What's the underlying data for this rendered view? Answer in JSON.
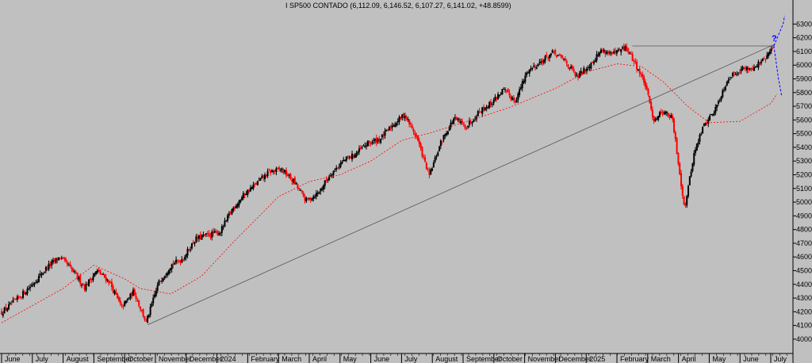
{
  "chart_data": {
    "type": "candlestick",
    "title": "I SP500 CONTADO (6,112.09, 6,146.52, 6,107.27, 6,141.02, +48.8599)",
    "ylim": [
      3930,
      6360
    ],
    "y_ticks": [
      4000,
      4100,
      4200,
      4300,
      4400,
      4500,
      4600,
      4700,
      4800,
      4900,
      5000,
      5100,
      5200,
      5300,
      5400,
      5500,
      5600,
      5700,
      5800,
      5900,
      6000,
      6100,
      6200,
      6300
    ],
    "x_labels": [
      "June",
      "July",
      "August",
      "September",
      "October",
      "November",
      "December",
      "2024",
      "February",
      "March",
      "April",
      "May",
      "June",
      "July",
      "August",
      "September",
      "October",
      "November",
      "December",
      "2025",
      "February",
      "March",
      "April",
      "May",
      "June",
      "July"
    ],
    "x_label_month_index": [
      0,
      1,
      2,
      3,
      4,
      5,
      6,
      7,
      8,
      9,
      10,
      11,
      12,
      13,
      14,
      15,
      16,
      17,
      18,
      19,
      20,
      21,
      22,
      23,
      24,
      25
    ],
    "price_path": [
      [
        0,
        4195
      ],
      [
        0.5,
        4290
      ],
      [
        1,
        4400
      ],
      [
        1.5,
        4530
      ],
      [
        1.9,
        4600
      ],
      [
        2.3,
        4500
      ],
      [
        2.7,
        4380
      ],
      [
        3.1,
        4500
      ],
      [
        3.5,
        4420
      ],
      [
        3.9,
        4230
      ],
      [
        4.3,
        4350
      ],
      [
        4.7,
        4120
      ],
      [
        5.1,
        4410
      ],
      [
        5.5,
        4540
      ],
      [
        5.9,
        4590
      ],
      [
        6.3,
        4730
      ],
      [
        6.7,
        4760
      ],
      [
        7.1,
        4780
      ],
      [
        7.5,
        4950
      ],
      [
        7.9,
        5060
      ],
      [
        8.3,
        5140
      ],
      [
        8.7,
        5220
      ],
      [
        9.1,
        5240
      ],
      [
        9.5,
        5150
      ],
      [
        9.9,
        5010
      ],
      [
        10.3,
        5070
      ],
      [
        10.7,
        5210
      ],
      [
        11.1,
        5300
      ],
      [
        11.5,
        5350
      ],
      [
        11.9,
        5430
      ],
      [
        12.3,
        5460
      ],
      [
        12.7,
        5560
      ],
      [
        13.1,
        5640
      ],
      [
        13.5,
        5470
      ],
      [
        13.9,
        5190
      ],
      [
        14.3,
        5450
      ],
      [
        14.7,
        5610
      ],
      [
        15.1,
        5550
      ],
      [
        15.5,
        5660
      ],
      [
        15.9,
        5720
      ],
      [
        16.3,
        5820
      ],
      [
        16.7,
        5740
      ],
      [
        17.1,
        5960
      ],
      [
        17.5,
        6020
      ],
      [
        17.9,
        6090
      ],
      [
        18.3,
        6040
      ],
      [
        18.7,
        5910
      ],
      [
        19.1,
        6000
      ],
      [
        19.5,
        6110
      ],
      [
        19.9,
        6080
      ],
      [
        20.3,
        6130
      ],
      [
        20.6,
        6010
      ],
      [
        20.9,
        5870
      ],
      [
        21.2,
        5600
      ],
      [
        21.5,
        5670
      ],
      [
        21.8,
        5610
      ],
      [
        22.2,
        4950
      ],
      [
        22.5,
        5350
      ],
      [
        22.8,
        5550
      ],
      [
        23.2,
        5680
      ],
      [
        23.6,
        5900
      ],
      [
        24,
        5970
      ],
      [
        24.4,
        5980
      ],
      [
        24.8,
        6040
      ],
      [
        25.1,
        6141
      ]
    ],
    "ma_path": [
      [
        0,
        4120
      ],
      [
        2,
        4370
      ],
      [
        3,
        4540
      ],
      [
        4,
        4440
      ],
      [
        4.5,
        4370
      ],
      [
        5.5,
        4330
      ],
      [
        6.5,
        4460
      ],
      [
        7.5,
        4700
      ],
      [
        9,
        5040
      ],
      [
        10,
        5150
      ],
      [
        11,
        5200
      ],
      [
        12,
        5300
      ],
      [
        13,
        5450
      ],
      [
        14,
        5510
      ],
      [
        15,
        5580
      ],
      [
        16.5,
        5690
      ],
      [
        18,
        5830
      ],
      [
        19,
        5950
      ],
      [
        20,
        6010
      ],
      [
        20.8,
        5990
      ],
      [
        21.5,
        5880
      ],
      [
        22.3,
        5700
      ],
      [
        23,
        5580
      ],
      [
        24,
        5590
      ],
      [
        25,
        5720
      ],
      [
        25.2,
        5790
      ]
    ],
    "trendline_1": [
      [
        4.75,
        4105
      ],
      [
        25.15,
        6155
      ]
    ],
    "trendline_2": [
      [
        20.5,
        6140
      ],
      [
        25.1,
        6140
      ]
    ],
    "projection_dots": [
      [
        25.1,
        6141
      ],
      [
        25.4,
        6300
      ],
      [
        25.45,
        6360
      ]
    ],
    "projection_dots_2": [
      [
        25.1,
        6141
      ],
      [
        25.25,
        5900
      ],
      [
        25.35,
        5780
      ]
    ],
    "annotation": "?",
    "colors": {
      "background": "#c0c0c0",
      "up": "#000000",
      "down": "#ff0000",
      "ma": "#ff0000",
      "trend": "#555555",
      "projection": "#0000ff"
    },
    "grid": false
  }
}
